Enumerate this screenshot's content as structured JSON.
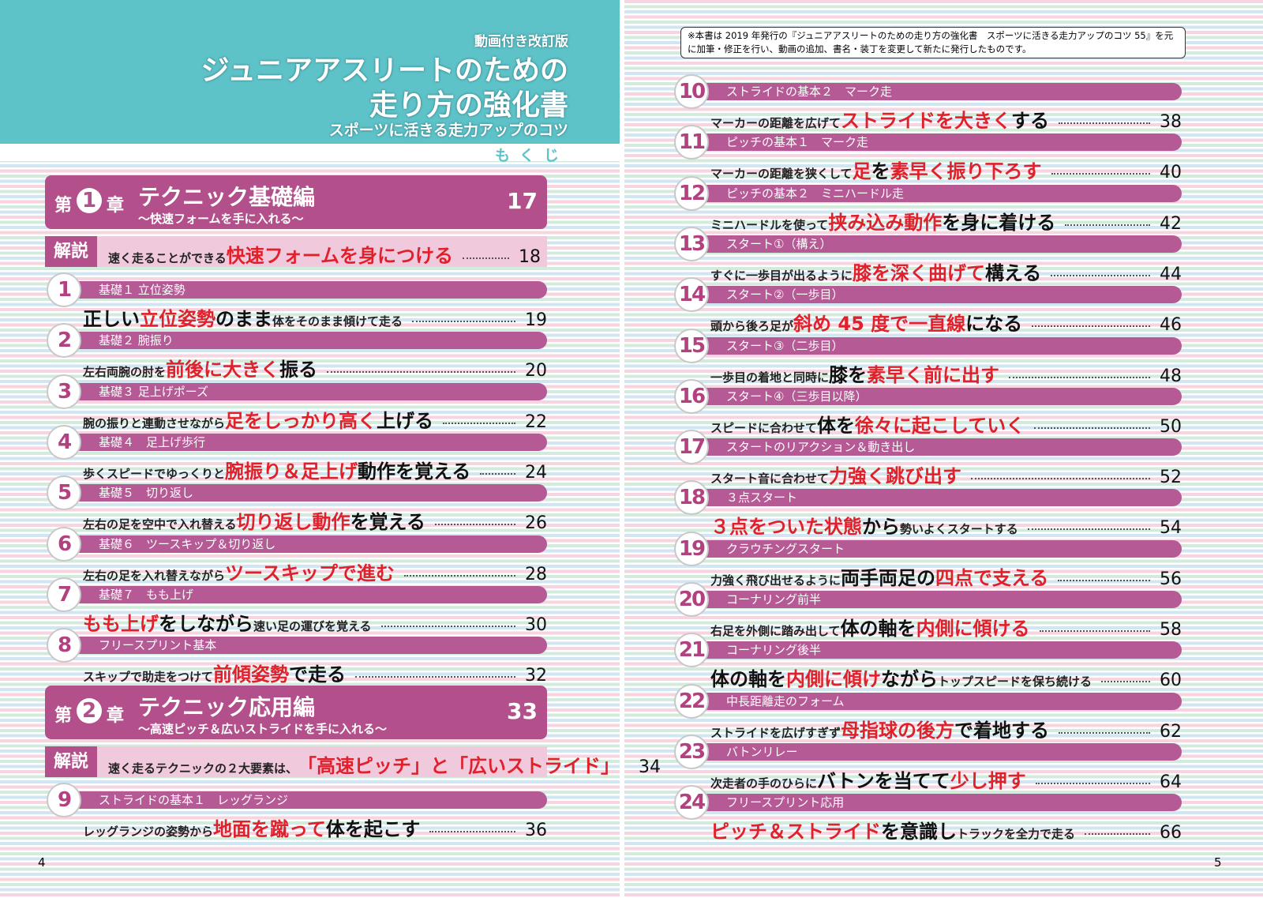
{
  "header": {
    "edition": "動画付き改訂版",
    "title_line1": "ジュニアアスリートのための",
    "title_line2": "走り方の強化書",
    "subtitle": "スポーツに活きる走力アップのコツ",
    "contents": "もくじ"
  },
  "note": "※本書は 2019 年発行の『ジュニアアスリートのための走り方の強化書　スポーツに活きる走力アップのコツ 55』を元に加筆・修正を行い、動画の追加、書名・装丁を変更して新たに発行したものです。",
  "page_numbers": {
    "left": "4",
    "right": "5"
  },
  "chapters": [
    {
      "prefix": "第",
      "number": "1",
      "suffix": "章",
      "title": "テクニック基礎編",
      "subtitle": "〜快速フォームを手に入れる〜",
      "page": "17",
      "explanation": {
        "label": "解説",
        "segments": [
          {
            "text": "速く走ることができる",
            "style": "s"
          },
          {
            "text": "快速フォームを身につける",
            "style": "r"
          }
        ],
        "page": "18"
      },
      "items": [
        {
          "num": "1",
          "label": "基礎１ 立位姿勢",
          "segments": [
            {
              "text": "正しい",
              "style": "b"
            },
            {
              "text": "立位姿勢",
              "style": "r"
            },
            {
              "text": "のまま",
              "style": "b"
            },
            {
              "text": "体をそのまま傾けて走る",
              "style": "s"
            }
          ],
          "page": "19"
        },
        {
          "num": "2",
          "label": "基礎２ 腕振り",
          "segments": [
            {
              "text": "左右両腕の肘を",
              "style": "s"
            },
            {
              "text": "前後に大きく",
              "style": "r"
            },
            {
              "text": "振る",
              "style": "b"
            }
          ],
          "page": "20"
        },
        {
          "num": "3",
          "label": "基礎３ 足上げポーズ",
          "segments": [
            {
              "text": "腕の振りと連動させながら",
              "style": "s"
            },
            {
              "text": "足をしっかり高く",
              "style": "r"
            },
            {
              "text": "上げる",
              "style": "b"
            }
          ],
          "page": "22"
        },
        {
          "num": "4",
          "label": "基礎４　足上げ歩行",
          "segments": [
            {
              "text": "歩くスピードでゆっくりと",
              "style": "s"
            },
            {
              "text": "腕振り＆足上げ",
              "style": "r"
            },
            {
              "text": "動作を覚える",
              "style": "b"
            }
          ],
          "page": "24"
        },
        {
          "num": "5",
          "label": "基礎５　切り返し",
          "segments": [
            {
              "text": "左右の足を空中で入れ替える",
              "style": "s"
            },
            {
              "text": "切り返し動作",
              "style": "r"
            },
            {
              "text": "を覚える",
              "style": "b"
            }
          ],
          "page": "26"
        },
        {
          "num": "6",
          "label": "基礎６　ツースキップ＆切り返し",
          "segments": [
            {
              "text": "左右の足を入れ替えながら",
              "style": "s"
            },
            {
              "text": "ツースキップで進む",
              "style": "r"
            }
          ],
          "page": "28"
        },
        {
          "num": "7",
          "label": "基礎７　もも上げ",
          "segments": [
            {
              "text": "もも上げ",
              "style": "r"
            },
            {
              "text": "をしながら",
              "style": "b"
            },
            {
              "text": "速い足の運びを覚える",
              "style": "s"
            }
          ],
          "page": "30"
        },
        {
          "num": "8",
          "label": "フリースプリント基本",
          "segments": [
            {
              "text": "スキップで助走をつけて",
              "style": "s"
            },
            {
              "text": "前傾姿勢",
              "style": "r"
            },
            {
              "text": "で走る",
              "style": "b"
            }
          ],
          "page": "32"
        }
      ]
    },
    {
      "prefix": "第",
      "number": "2",
      "suffix": "章",
      "title": "テクニック応用編",
      "subtitle": "〜高速ピッチ＆広いストライドを手に入れる〜",
      "page": "33",
      "explanation": {
        "label": "解説",
        "segments": [
          {
            "text": "速く走るテクニックの２大要素は、",
            "style": "s"
          },
          {
            "text": "「高速ピッチ」と「広いストライド」",
            "style": "r"
          }
        ],
        "page": "34"
      },
      "items": [
        {
          "num": "9",
          "label": "ストライドの基本１　レッグランジ",
          "segments": [
            {
              "text": "レッグランジの姿勢から",
              "style": "s"
            },
            {
              "text": "地面を蹴って",
              "style": "r"
            },
            {
              "text": "体を起こす",
              "style": "b"
            }
          ],
          "page": "36"
        },
        {
          "num": "10",
          "label": "ストライドの基本２　マーク走",
          "segments": [
            {
              "text": "マーカーの距離を広げて",
              "style": "s"
            },
            {
              "text": "ストライドを大きく",
              "style": "r"
            },
            {
              "text": "する",
              "style": "b"
            }
          ],
          "page": "38"
        },
        {
          "num": "11",
          "label": "ピッチの基本１　マーク走",
          "segments": [
            {
              "text": "マーカーの距離を狭くして",
              "style": "s"
            },
            {
              "text": "足",
              "style": "r"
            },
            {
              "text": "を",
              "style": "b"
            },
            {
              "text": "素早く振り下ろす",
              "style": "r"
            }
          ],
          "page": "40"
        },
        {
          "num": "12",
          "label": "ピッチの基本２　ミニハードル走",
          "segments": [
            {
              "text": "ミニハードルを使って",
              "style": "s"
            },
            {
              "text": "挟み込み動作",
              "style": "r"
            },
            {
              "text": "を身に着ける",
              "style": "b"
            }
          ],
          "page": "42"
        },
        {
          "num": "13",
          "label": "スタート①（構え）",
          "segments": [
            {
              "text": "すぐに一歩目が出るように",
              "style": "s"
            },
            {
              "text": "膝を深く曲げて",
              "style": "r"
            },
            {
              "text": "構える",
              "style": "b"
            }
          ],
          "page": "44"
        },
        {
          "num": "14",
          "label": "スタート②（一歩目）",
          "segments": [
            {
              "text": "頭から後ろ足が",
              "style": "s"
            },
            {
              "text": "斜め 45 度で一直線",
              "style": "r"
            },
            {
              "text": "になる",
              "style": "b"
            }
          ],
          "page": "46"
        },
        {
          "num": "15",
          "label": "スタート③（二歩目）",
          "segments": [
            {
              "text": "一歩目の着地と同時に",
              "style": "s"
            },
            {
              "text": "膝を",
              "style": "b"
            },
            {
              "text": "素早く前に出す",
              "style": "r"
            }
          ],
          "page": "48"
        },
        {
          "num": "16",
          "label": "スタート④（三歩目以降）",
          "segments": [
            {
              "text": "スピードに合わせて",
              "style": "s"
            },
            {
              "text": "体を",
              "style": "b"
            },
            {
              "text": "徐々に起こしていく",
              "style": "r"
            }
          ],
          "page": "50"
        },
        {
          "num": "17",
          "label": "スタートのリアクション＆動き出し",
          "segments": [
            {
              "text": "スタート音に合わせて",
              "style": "s"
            },
            {
              "text": "力強く跳び出す",
              "style": "r"
            }
          ],
          "page": "52"
        },
        {
          "num": "18",
          "label": "３点スタート",
          "segments": [
            {
              "text": "３点をついた状態",
              "style": "r"
            },
            {
              "text": "から",
              "style": "b"
            },
            {
              "text": "勢いよくスタートする",
              "style": "s"
            }
          ],
          "page": "54"
        },
        {
          "num": "19",
          "label": "クラウチングスタート",
          "segments": [
            {
              "text": "力強く飛び出せるように",
              "style": "s"
            },
            {
              "text": "両手両足の",
              "style": "b"
            },
            {
              "text": "四点で支える",
              "style": "r"
            }
          ],
          "page": "56"
        },
        {
          "num": "20",
          "label": "コーナリング前半",
          "segments": [
            {
              "text": "右足を外側に踏み出して",
              "style": "s"
            },
            {
              "text": "体の軸を",
              "style": "b"
            },
            {
              "text": "内側に傾ける",
              "style": "r"
            }
          ],
          "page": "58"
        },
        {
          "num": "21",
          "label": "コーナリング後半",
          "segments": [
            {
              "text": "体の軸を",
              "style": "b"
            },
            {
              "text": "内側に傾け",
              "style": "r"
            },
            {
              "text": "ながら",
              "style": "b"
            },
            {
              "text": "トップスピードを保ち続ける",
              "style": "s"
            }
          ],
          "page": "60"
        },
        {
          "num": "22",
          "label": "中長距離走のフォーム",
          "segments": [
            {
              "text": "ストライドを広げすぎず",
              "style": "s"
            },
            {
              "text": "母指球の後方",
              "style": "r"
            },
            {
              "text": "で着地する",
              "style": "b"
            }
          ],
          "page": "62"
        },
        {
          "num": "23",
          "label": "バトンリレー",
          "segments": [
            {
              "text": "次走者の手のひらに",
              "style": "s"
            },
            {
              "text": "バトンを当てて",
              "style": "b"
            },
            {
              "text": "少し押す",
              "style": "r"
            }
          ],
          "page": "64"
        },
        {
          "num": "24",
          "label": "フリースプリント応用",
          "segments": [
            {
              "text": "ピッチ＆ストライド",
              "style": "r"
            },
            {
              "text": "を意識し",
              "style": "b"
            },
            {
              "text": "トラックを全力で走る",
              "style": "s"
            }
          ],
          "page": "66"
        }
      ]
    }
  ]
}
